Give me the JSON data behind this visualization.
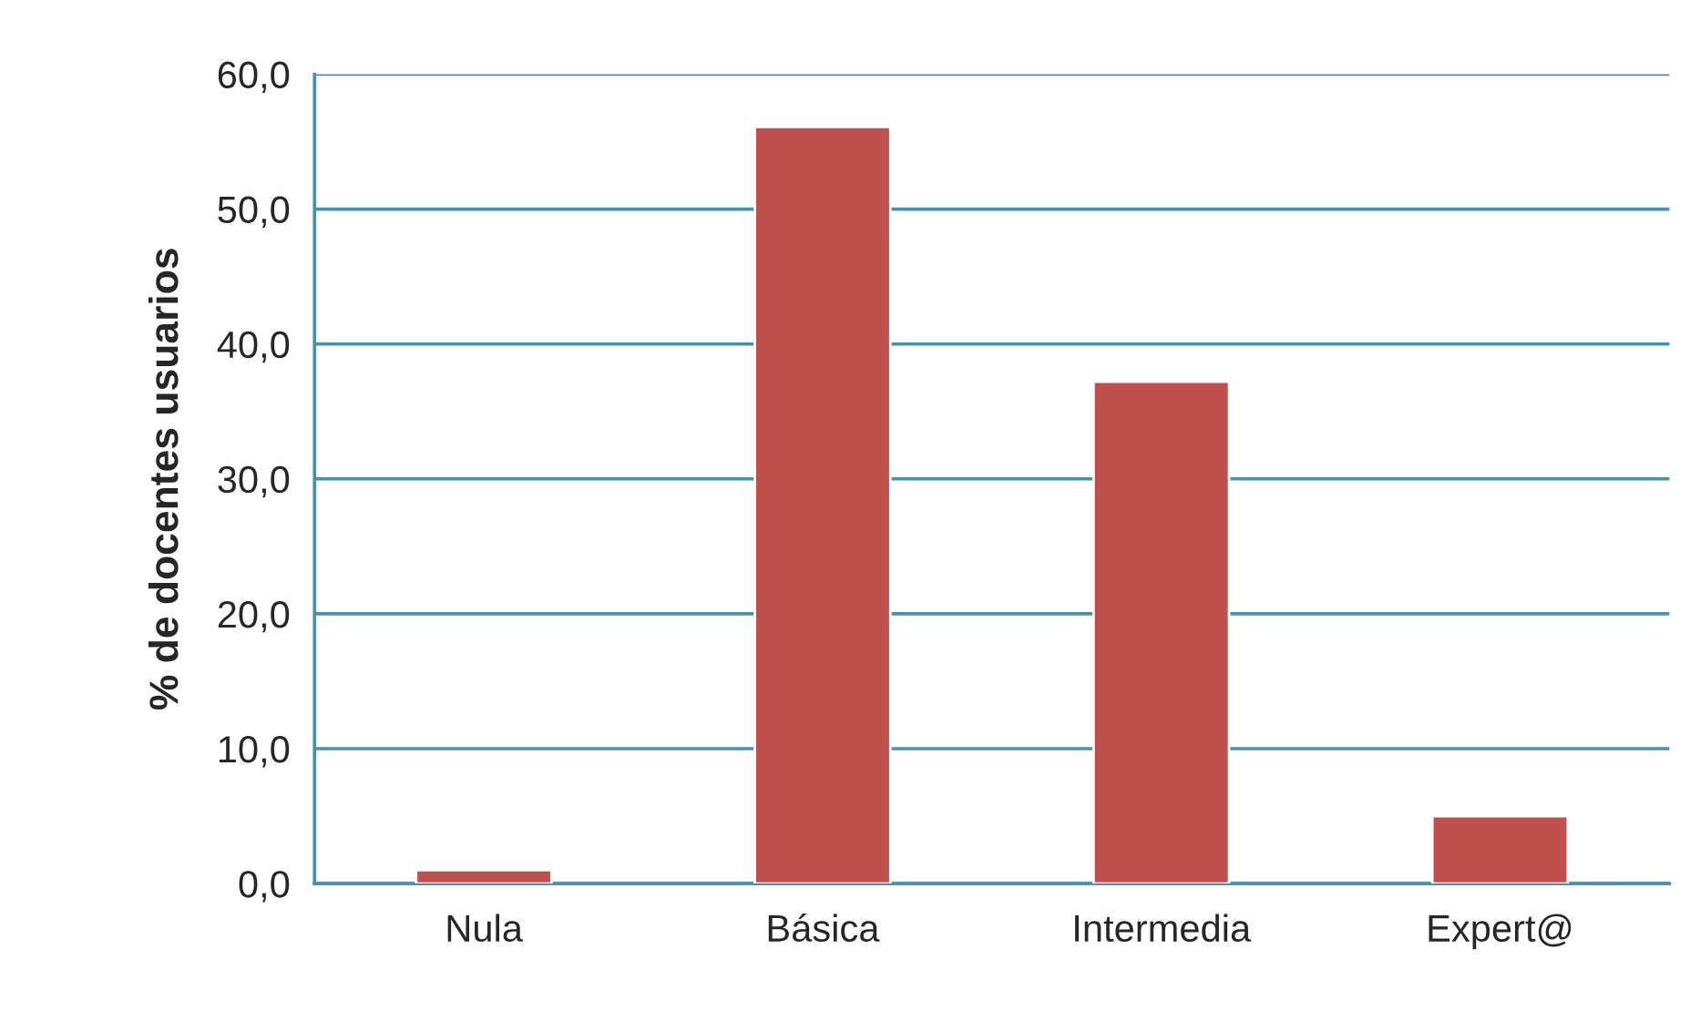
{
  "chart_data": {
    "type": "bar",
    "ylabel": "% de docentes usuarios",
    "categories": [
      "Nula",
      "Básica",
      "Intermedia",
      "Expert@"
    ],
    "values": [
      1.0,
      56.1,
      37.2,
      5.0
    ],
    "color": "#c0504d",
    "ylim": [
      0,
      60
    ],
    "yticks": [
      {
        "value": 0,
        "label": "0,0"
      },
      {
        "value": 10,
        "label": "10,0"
      },
      {
        "value": 20,
        "label": "20,0"
      },
      {
        "value": 30,
        "label": "30,0"
      },
      {
        "value": 40,
        "label": "40,0"
      },
      {
        "value": 50,
        "label": "50,0"
      },
      {
        "value": 60,
        "label": "60,0"
      }
    ],
    "grid": "y"
  }
}
